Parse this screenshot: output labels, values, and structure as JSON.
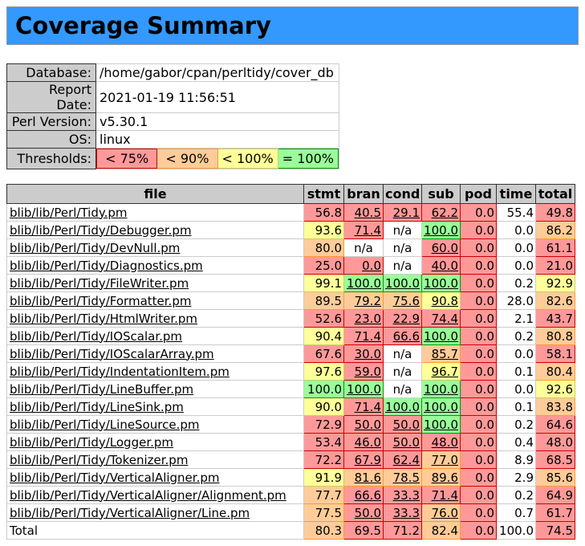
{
  "title": "Coverage Summary",
  "info": {
    "rows": [
      {
        "label": "Database:",
        "value": "/home/gabor/cpan/perltidy/cover_db"
      },
      {
        "label": "Report Date:",
        "value": "2021-01-19 11:56:51"
      },
      {
        "label": "Perl Version:",
        "value": "v5.30.1"
      },
      {
        "label": "OS:",
        "value": "linux"
      }
    ],
    "thresholds": {
      "label": "Thresholds:",
      "items": [
        {
          "text": "< 75%",
          "level": "c0"
        },
        {
          "text": "< 90%",
          "level": "c1"
        },
        {
          "text": "< 100%",
          "level": "c2"
        },
        {
          "text": "= 100%",
          "level": "c3"
        }
      ]
    }
  },
  "colors": {
    "title_bar": "#3399ff",
    "header_gray": "#cccccc",
    "red_bg": "#ff9999",
    "red_border": "#cc0000",
    "orange_bg": "#ffcc99",
    "orange_border": "#ff9933",
    "yellow_bg": "#ffff99",
    "yellow_border": "#cccc66",
    "green_bg": "#99ff99",
    "green_border": "#009900"
  },
  "table": {
    "columns": [
      "file",
      "stmt",
      "bran",
      "cond",
      "sub",
      "pod",
      "time",
      "total"
    ],
    "rows": [
      {
        "file": "blib/lib/Perl/Tidy.pm",
        "is_link": true,
        "cells": [
          {
            "t": "56.8",
            "c": "c0"
          },
          {
            "t": "40.5",
            "c": "c0",
            "link": true
          },
          {
            "t": "29.1",
            "c": "c0",
            "link": true
          },
          {
            "t": "62.2",
            "c": "c0",
            "link": true
          },
          {
            "t": "0.0",
            "c": "c0"
          },
          {
            "t": "55.4",
            "c": ""
          },
          {
            "t": "49.8",
            "c": "c0"
          }
        ]
      },
      {
        "file": "blib/lib/Perl/Tidy/Debugger.pm",
        "is_link": true,
        "cells": [
          {
            "t": "93.6",
            "c": "c2"
          },
          {
            "t": "71.4",
            "c": "c0",
            "link": true
          },
          {
            "t": "n/a",
            "c": ""
          },
          {
            "t": "100.0",
            "c": "c3",
            "link": true
          },
          {
            "t": "0.0",
            "c": "c0"
          },
          {
            "t": "0.0",
            "c": ""
          },
          {
            "t": "86.2",
            "c": "c1"
          }
        ]
      },
      {
        "file": "blib/lib/Perl/Tidy/DevNull.pm",
        "is_link": true,
        "cells": [
          {
            "t": "80.0",
            "c": "c1"
          },
          {
            "t": "n/a",
            "c": ""
          },
          {
            "t": "n/a",
            "c": ""
          },
          {
            "t": "60.0",
            "c": "c0",
            "link": true
          },
          {
            "t": "0.0",
            "c": "c0"
          },
          {
            "t": "0.0",
            "c": ""
          },
          {
            "t": "61.1",
            "c": "c0"
          }
        ]
      },
      {
        "file": "blib/lib/Perl/Tidy/Diagnostics.pm",
        "is_link": true,
        "cells": [
          {
            "t": "25.0",
            "c": "c0"
          },
          {
            "t": "0.0",
            "c": "c0",
            "link": true
          },
          {
            "t": "n/a",
            "c": ""
          },
          {
            "t": "40.0",
            "c": "c0",
            "link": true
          },
          {
            "t": "0.0",
            "c": "c0"
          },
          {
            "t": "0.0",
            "c": ""
          },
          {
            "t": "21.0",
            "c": "c0"
          }
        ]
      },
      {
        "file": "blib/lib/Perl/Tidy/FileWriter.pm",
        "is_link": true,
        "cells": [
          {
            "t": "99.1",
            "c": "c2"
          },
          {
            "t": "100.0",
            "c": "c3",
            "link": true
          },
          {
            "t": "100.0",
            "c": "c3",
            "link": true
          },
          {
            "t": "100.0",
            "c": "c3",
            "link": true
          },
          {
            "t": "0.0",
            "c": "c0"
          },
          {
            "t": "0.2",
            "c": ""
          },
          {
            "t": "92.9",
            "c": "c2"
          }
        ]
      },
      {
        "file": "blib/lib/Perl/Tidy/Formatter.pm",
        "is_link": true,
        "cells": [
          {
            "t": "89.5",
            "c": "c1"
          },
          {
            "t": "79.2",
            "c": "c1",
            "link": true
          },
          {
            "t": "75.6",
            "c": "c1",
            "link": true
          },
          {
            "t": "90.8",
            "c": "c2",
            "link": true
          },
          {
            "t": "0.0",
            "c": "c0"
          },
          {
            "t": "28.0",
            "c": ""
          },
          {
            "t": "82.6",
            "c": "c1"
          }
        ]
      },
      {
        "file": "blib/lib/Perl/Tidy/HtmlWriter.pm",
        "is_link": true,
        "cells": [
          {
            "t": "52.6",
            "c": "c0"
          },
          {
            "t": "23.0",
            "c": "c0",
            "link": true
          },
          {
            "t": "22.9",
            "c": "c0",
            "link": true
          },
          {
            "t": "74.4",
            "c": "c0",
            "link": true
          },
          {
            "t": "0.0",
            "c": "c0"
          },
          {
            "t": "2.1",
            "c": ""
          },
          {
            "t": "43.7",
            "c": "c0"
          }
        ]
      },
      {
        "file": "blib/lib/Perl/Tidy/IOScalar.pm",
        "is_link": true,
        "cells": [
          {
            "t": "90.4",
            "c": "c2"
          },
          {
            "t": "71.4",
            "c": "c0",
            "link": true
          },
          {
            "t": "66.6",
            "c": "c0",
            "link": true
          },
          {
            "t": "100.0",
            "c": "c3",
            "link": true
          },
          {
            "t": "0.0",
            "c": "c0"
          },
          {
            "t": "0.2",
            "c": ""
          },
          {
            "t": "80.8",
            "c": "c1"
          }
        ]
      },
      {
        "file": "blib/lib/Perl/Tidy/IOScalarArray.pm",
        "is_link": true,
        "cells": [
          {
            "t": "67.6",
            "c": "c0"
          },
          {
            "t": "30.0",
            "c": "c0",
            "link": true
          },
          {
            "t": "n/a",
            "c": ""
          },
          {
            "t": "85.7",
            "c": "c1",
            "link": true
          },
          {
            "t": "0.0",
            "c": "c0"
          },
          {
            "t": "0.0",
            "c": ""
          },
          {
            "t": "58.1",
            "c": "c0"
          }
        ]
      },
      {
        "file": "blib/lib/Perl/Tidy/IndentationItem.pm",
        "is_link": true,
        "cells": [
          {
            "t": "97.6",
            "c": "c2"
          },
          {
            "t": "59.0",
            "c": "c0",
            "link": true
          },
          {
            "t": "n/a",
            "c": ""
          },
          {
            "t": "96.7",
            "c": "c2",
            "link": true
          },
          {
            "t": "0.0",
            "c": "c0"
          },
          {
            "t": "0.1",
            "c": ""
          },
          {
            "t": "80.4",
            "c": "c1"
          }
        ]
      },
      {
        "file": "blib/lib/Perl/Tidy/LineBuffer.pm",
        "is_link": true,
        "cells": [
          {
            "t": "100.0",
            "c": "c3"
          },
          {
            "t": "100.0",
            "c": "c3",
            "link": true
          },
          {
            "t": "n/a",
            "c": ""
          },
          {
            "t": "100.0",
            "c": "c3",
            "link": true
          },
          {
            "t": "0.0",
            "c": "c0"
          },
          {
            "t": "0.0",
            "c": ""
          },
          {
            "t": "92.6",
            "c": "c2"
          }
        ]
      },
      {
        "file": "blib/lib/Perl/Tidy/LineSink.pm",
        "is_link": true,
        "cells": [
          {
            "t": "90.0",
            "c": "c2"
          },
          {
            "t": "71.4",
            "c": "c0",
            "link": true
          },
          {
            "t": "100.0",
            "c": "c3",
            "link": true
          },
          {
            "t": "100.0",
            "c": "c3",
            "link": true
          },
          {
            "t": "0.0",
            "c": "c0"
          },
          {
            "t": "0.1",
            "c": ""
          },
          {
            "t": "83.8",
            "c": "c1"
          }
        ]
      },
      {
        "file": "blib/lib/Perl/Tidy/LineSource.pm",
        "is_link": true,
        "cells": [
          {
            "t": "72.9",
            "c": "c0"
          },
          {
            "t": "50.0",
            "c": "c0",
            "link": true
          },
          {
            "t": "50.0",
            "c": "c0",
            "link": true
          },
          {
            "t": "100.0",
            "c": "c3",
            "link": true
          },
          {
            "t": "0.0",
            "c": "c0"
          },
          {
            "t": "0.2",
            "c": ""
          },
          {
            "t": "64.6",
            "c": "c0"
          }
        ]
      },
      {
        "file": "blib/lib/Perl/Tidy/Logger.pm",
        "is_link": true,
        "cells": [
          {
            "t": "53.4",
            "c": "c0"
          },
          {
            "t": "46.0",
            "c": "c0",
            "link": true
          },
          {
            "t": "50.0",
            "c": "c0",
            "link": true
          },
          {
            "t": "48.0",
            "c": "c0",
            "link": true
          },
          {
            "t": "0.0",
            "c": "c0"
          },
          {
            "t": "0.4",
            "c": ""
          },
          {
            "t": "48.0",
            "c": "c0"
          }
        ]
      },
      {
        "file": "blib/lib/Perl/Tidy/Tokenizer.pm",
        "is_link": true,
        "cells": [
          {
            "t": "72.2",
            "c": "c0"
          },
          {
            "t": "67.9",
            "c": "c0",
            "link": true
          },
          {
            "t": "62.4",
            "c": "c0",
            "link": true
          },
          {
            "t": "77.0",
            "c": "c1",
            "link": true
          },
          {
            "t": "0.0",
            "c": "c0"
          },
          {
            "t": "8.9",
            "c": ""
          },
          {
            "t": "68.5",
            "c": "c0"
          }
        ]
      },
      {
        "file": "blib/lib/Perl/Tidy/VerticalAligner.pm",
        "is_link": true,
        "cells": [
          {
            "t": "91.9",
            "c": "c2"
          },
          {
            "t": "81.6",
            "c": "c1",
            "link": true
          },
          {
            "t": "78.5",
            "c": "c1",
            "link": true
          },
          {
            "t": "89.6",
            "c": "c1",
            "link": true
          },
          {
            "t": "0.0",
            "c": "c0"
          },
          {
            "t": "2.9",
            "c": ""
          },
          {
            "t": "85.6",
            "c": "c1"
          }
        ]
      },
      {
        "file": "blib/lib/Perl/Tidy/VerticalAligner/Alignment.pm",
        "is_link": true,
        "cells": [
          {
            "t": "77.7",
            "c": "c1"
          },
          {
            "t": "66.6",
            "c": "c0",
            "link": true
          },
          {
            "t": "33.3",
            "c": "c0",
            "link": true
          },
          {
            "t": "71.4",
            "c": "c0",
            "link": true
          },
          {
            "t": "0.0",
            "c": "c0"
          },
          {
            "t": "0.2",
            "c": ""
          },
          {
            "t": "64.9",
            "c": "c0"
          }
        ]
      },
      {
        "file": "blib/lib/Perl/Tidy/VerticalAligner/Line.pm",
        "is_link": true,
        "cells": [
          {
            "t": "77.5",
            "c": "c1"
          },
          {
            "t": "50.0",
            "c": "c0",
            "link": true
          },
          {
            "t": "33.3",
            "c": "c0",
            "link": true
          },
          {
            "t": "76.0",
            "c": "c1",
            "link": true
          },
          {
            "t": "0.0",
            "c": "c0"
          },
          {
            "t": "0.7",
            "c": ""
          },
          {
            "t": "61.7",
            "c": "c0"
          }
        ]
      },
      {
        "file": "Total",
        "is_link": false,
        "cells": [
          {
            "t": "80.3",
            "c": "c1"
          },
          {
            "t": "69.5",
            "c": "c0"
          },
          {
            "t": "71.2",
            "c": "c0"
          },
          {
            "t": "82.4",
            "c": "c1"
          },
          {
            "t": "0.0",
            "c": "c0"
          },
          {
            "t": "100.0",
            "c": ""
          },
          {
            "t": "74.5",
            "c": "c0"
          }
        ]
      }
    ]
  }
}
